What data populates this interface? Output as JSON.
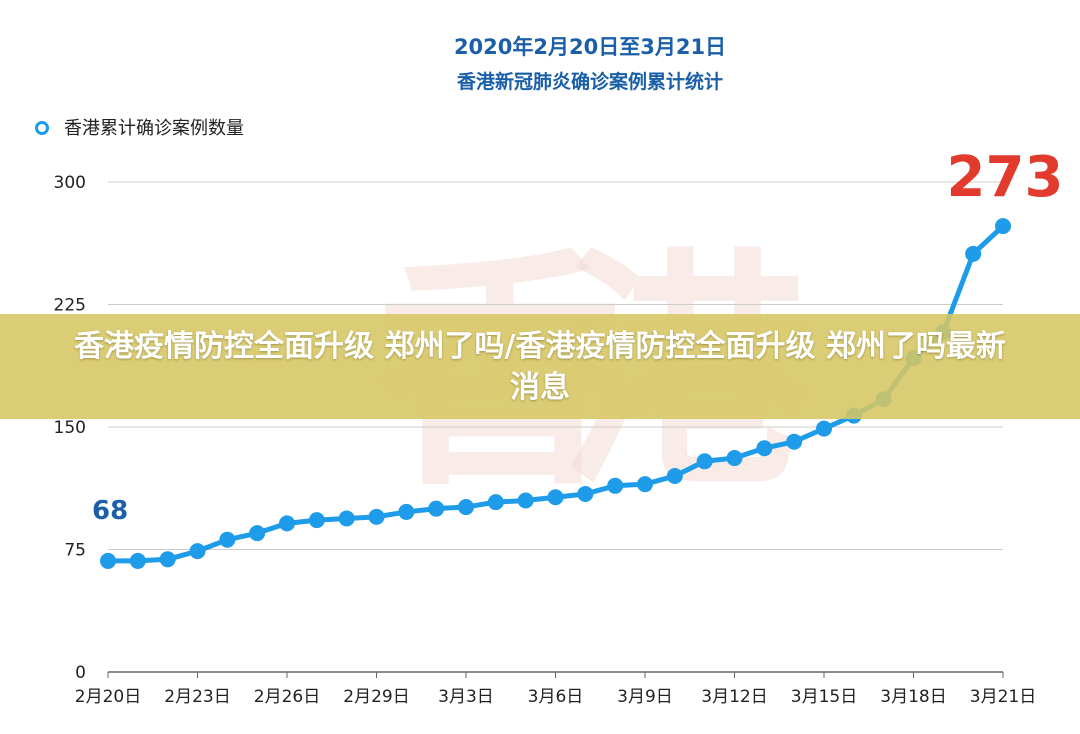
{
  "banner": {
    "headline": "香港疫情防控全面升级 郑州了吗/香港疫情防控全面升级 郑州了吗最新消息"
  },
  "watermark": "香港",
  "colors": {
    "line": "#1e9be9",
    "title": "#1a5fa8",
    "start_label": "#1a5fa8",
    "end_label": "#e23b2e",
    "grid": "#cccccc",
    "watermark": "#f3dcd6",
    "banner": "#d6c662"
  },
  "chart_data": {
    "type": "line",
    "title": "2020年2月20日至3月21日",
    "subtitle": "香港新冠肺炎确诊案例累计统计",
    "xlabel": "",
    "ylabel": "",
    "ylim": [
      0,
      300
    ],
    "yticks": [
      "0",
      "75",
      "150",
      "225",
      "300"
    ],
    "grid": true,
    "legend": "top-left",
    "x_tick_labels": [
      "2月20日",
      "2月23日",
      "2月26日",
      "2月29日",
      "3月3日",
      "3月6日",
      "3月9日",
      "3月12日",
      "3月15日",
      "3月18日",
      "3月21日"
    ],
    "x": [
      "2月20日",
      "2月21日",
      "2月22日",
      "2月23日",
      "2月24日",
      "2月25日",
      "2月26日",
      "2月27日",
      "2月28日",
      "2月29日",
      "3月1日",
      "3月2日",
      "3月3日",
      "3月4日",
      "3月5日",
      "3月6日",
      "3月7日",
      "3月8日",
      "3月9日",
      "3月10日",
      "3月11日",
      "3月12日",
      "3月13日",
      "3月14日",
      "3月15日",
      "3月16日",
      "3月17日",
      "3月18日",
      "3月19日",
      "3月20日",
      "3月21日"
    ],
    "series": [
      {
        "name": "香港累计确诊案例数量",
        "values": [
          68,
          68,
          69,
          74,
          81,
          85,
          91,
          93,
          94,
          95,
          98,
          100,
          101,
          104,
          105,
          107,
          109,
          114,
          115,
          120,
          129,
          131,
          137,
          141,
          149,
          157,
          167,
          192,
          208,
          256,
          273
        ]
      }
    ],
    "annotations": [
      {
        "text": "68",
        "at": "2月20日"
      },
      {
        "text": "273",
        "at": "3月21日"
      }
    ]
  }
}
